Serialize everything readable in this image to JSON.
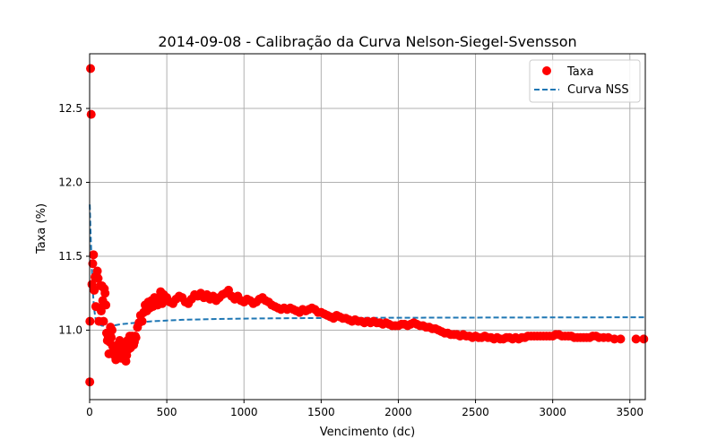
{
  "chart_data": {
    "type": "scatter",
    "title": "2014-09-08 - Calibração da Curva Nelson-Siegel-Svensson",
    "xlabel": "Vencimento (dc)",
    "ylabel": "Taxa (%)",
    "xlim": [
      0,
      3600
    ],
    "ylim": [
      10.53,
      12.87
    ],
    "xticks": [
      0,
      500,
      1000,
      1500,
      2000,
      2500,
      3000,
      3500
    ],
    "yticks": [
      11.0,
      11.5,
      12.0,
      12.5
    ],
    "xtick_labels": [
      "0",
      "500",
      "1000",
      "1500",
      "2000",
      "2500",
      "3000",
      "3500"
    ],
    "ytick_labels": [
      "11.0",
      "11.5",
      "12.0",
      "12.5"
    ],
    "grid": true,
    "legend_position": "top-right",
    "series": [
      {
        "name": "Taxa",
        "kind": "scatter",
        "color": "#ff0000",
        "points": [
          [
            1,
            10.65
          ],
          [
            2,
            11.06
          ],
          [
            6,
            12.77
          ],
          [
            10,
            12.46
          ],
          [
            15,
            11.31
          ],
          [
            20,
            11.45
          ],
          [
            25,
            11.51
          ],
          [
            30,
            11.27
          ],
          [
            35,
            11.36
          ],
          [
            40,
            11.16
          ],
          [
            45,
            11.37
          ],
          [
            50,
            11.4
          ],
          [
            55,
            11.35
          ],
          [
            60,
            11.06
          ],
          [
            65,
            11.15
          ],
          [
            70,
            11.3
          ],
          [
            75,
            11.13
          ],
          [
            80,
            11.3
          ],
          [
            85,
            11.2
          ],
          [
            90,
            11.06
          ],
          [
            95,
            11.28
          ],
          [
            100,
            11.25
          ],
          [
            105,
            11.17
          ],
          [
            110,
            10.98
          ],
          [
            115,
            10.93
          ],
          [
            120,
            10.96
          ],
          [
            125,
            10.84
          ],
          [
            130,
            10.92
          ],
          [
            135,
            11.02
          ],
          [
            140,
            10.95
          ],
          [
            145,
            11.0
          ],
          [
            150,
            10.89
          ],
          [
            155,
            10.85
          ],
          [
            160,
            10.83
          ],
          [
            165,
            10.88
          ],
          [
            170,
            10.8
          ],
          [
            175,
            10.86
          ],
          [
            180,
            10.9
          ],
          [
            185,
            10.82
          ],
          [
            190,
            10.88
          ],
          [
            195,
            10.93
          ],
          [
            200,
            10.82
          ],
          [
            205,
            10.81
          ],
          [
            210,
            10.86
          ],
          [
            215,
            10.9
          ],
          [
            220,
            10.83
          ],
          [
            225,
            10.88
          ],
          [
            230,
            10.84
          ],
          [
            235,
            10.79
          ],
          [
            240,
            10.83
          ],
          [
            245,
            10.93
          ],
          [
            250,
            10.87
          ],
          [
            255,
            10.92
          ],
          [
            260,
            10.96
          ],
          [
            265,
            10.88
          ],
          [
            270,
            10.92
          ],
          [
            275,
            10.96
          ],
          [
            280,
            10.95
          ],
          [
            285,
            10.9
          ],
          [
            290,
            10.92
          ],
          [
            295,
            10.96
          ],
          [
            300,
            10.95
          ],
          [
            310,
            11.02
          ],
          [
            320,
            11.05
          ],
          [
            330,
            11.1
          ],
          [
            340,
            11.06
          ],
          [
            350,
            11.12
          ],
          [
            360,
            11.17
          ],
          [
            370,
            11.13
          ],
          [
            380,
            11.19
          ],
          [
            390,
            11.15
          ],
          [
            400,
            11.2
          ],
          [
            410,
            11.16
          ],
          [
            420,
            11.22
          ],
          [
            430,
            11.19
          ],
          [
            440,
            11.17
          ],
          [
            450,
            11.21
          ],
          [
            460,
            11.26
          ],
          [
            470,
            11.18
          ],
          [
            480,
            11.24
          ],
          [
            490,
            11.2
          ],
          [
            500,
            11.22
          ],
          [
            520,
            11.19
          ],
          [
            540,
            11.18
          ],
          [
            560,
            11.21
          ],
          [
            580,
            11.23
          ],
          [
            600,
            11.22
          ],
          [
            620,
            11.19
          ],
          [
            640,
            11.18
          ],
          [
            660,
            11.21
          ],
          [
            680,
            11.24
          ],
          [
            700,
            11.23
          ],
          [
            720,
            11.25
          ],
          [
            740,
            11.22
          ],
          [
            760,
            11.24
          ],
          [
            780,
            11.21
          ],
          [
            800,
            11.23
          ],
          [
            820,
            11.2
          ],
          [
            840,
            11.22
          ],
          [
            860,
            11.24
          ],
          [
            880,
            11.25
          ],
          [
            900,
            11.27
          ],
          [
            920,
            11.23
          ],
          [
            940,
            11.21
          ],
          [
            960,
            11.23
          ],
          [
            980,
            11.2
          ],
          [
            1000,
            11.19
          ],
          [
            1020,
            11.21
          ],
          [
            1040,
            11.2
          ],
          [
            1060,
            11.18
          ],
          [
            1080,
            11.19
          ],
          [
            1100,
            11.21
          ],
          [
            1120,
            11.22
          ],
          [
            1140,
            11.2
          ],
          [
            1160,
            11.19
          ],
          [
            1180,
            11.17
          ],
          [
            1200,
            11.16
          ],
          [
            1220,
            11.15
          ],
          [
            1240,
            11.14
          ],
          [
            1260,
            11.15
          ],
          [
            1280,
            11.14
          ],
          [
            1300,
            11.15
          ],
          [
            1320,
            11.14
          ],
          [
            1340,
            11.13
          ],
          [
            1360,
            11.12
          ],
          [
            1380,
            11.14
          ],
          [
            1400,
            11.13
          ],
          [
            1420,
            11.14
          ],
          [
            1440,
            11.15
          ],
          [
            1460,
            11.14
          ],
          [
            1480,
            11.12
          ],
          [
            1500,
            11.12
          ],
          [
            1520,
            11.11
          ],
          [
            1540,
            11.1
          ],
          [
            1560,
            11.09
          ],
          [
            1580,
            11.08
          ],
          [
            1600,
            11.1
          ],
          [
            1620,
            11.09
          ],
          [
            1640,
            11.08
          ],
          [
            1660,
            11.08
          ],
          [
            1680,
            11.07
          ],
          [
            1700,
            11.06
          ],
          [
            1720,
            11.07
          ],
          [
            1740,
            11.06
          ],
          [
            1760,
            11.06
          ],
          [
            1780,
            11.05
          ],
          [
            1800,
            11.06
          ],
          [
            1820,
            11.05
          ],
          [
            1840,
            11.06
          ],
          [
            1860,
            11.05
          ],
          [
            1880,
            11.05
          ],
          [
            1900,
            11.04
          ],
          [
            1920,
            11.05
          ],
          [
            1940,
            11.04
          ],
          [
            1960,
            11.03
          ],
          [
            1980,
            11.03
          ],
          [
            2000,
            11.03
          ],
          [
            2020,
            11.04
          ],
          [
            2040,
            11.04
          ],
          [
            2060,
            11.03
          ],
          [
            2080,
            11.04
          ],
          [
            2100,
            11.05
          ],
          [
            2120,
            11.04
          ],
          [
            2140,
            11.03
          ],
          [
            2160,
            11.03
          ],
          [
            2180,
            11.02
          ],
          [
            2200,
            11.02
          ],
          [
            2220,
            11.01
          ],
          [
            2240,
            11.01
          ],
          [
            2260,
            11.0
          ],
          [
            2280,
            10.99
          ],
          [
            2300,
            10.98
          ],
          [
            2320,
            10.98
          ],
          [
            2340,
            10.97
          ],
          [
            2360,
            10.97
          ],
          [
            2380,
            10.97
          ],
          [
            2400,
            10.96
          ],
          [
            2420,
            10.97
          ],
          [
            2440,
            10.96
          ],
          [
            2460,
            10.96
          ],
          [
            2480,
            10.95
          ],
          [
            2500,
            10.96
          ],
          [
            2520,
            10.95
          ],
          [
            2540,
            10.95
          ],
          [
            2560,
            10.96
          ],
          [
            2580,
            10.95
          ],
          [
            2600,
            10.95
          ],
          [
            2620,
            10.94
          ],
          [
            2640,
            10.95
          ],
          [
            2660,
            10.94
          ],
          [
            2680,
            10.94
          ],
          [
            2700,
            10.95
          ],
          [
            2720,
            10.95
          ],
          [
            2740,
            10.94
          ],
          [
            2760,
            10.95
          ],
          [
            2780,
            10.94
          ],
          [
            2800,
            10.95
          ],
          [
            2820,
            10.95
          ],
          [
            2840,
            10.96
          ],
          [
            2860,
            10.96
          ],
          [
            2880,
            10.96
          ],
          [
            2900,
            10.96
          ],
          [
            2920,
            10.96
          ],
          [
            2940,
            10.96
          ],
          [
            2960,
            10.96
          ],
          [
            2980,
            10.96
          ],
          [
            3000,
            10.96
          ],
          [
            3020,
            10.97
          ],
          [
            3040,
            10.97
          ],
          [
            3060,
            10.96
          ],
          [
            3080,
            10.96
          ],
          [
            3100,
            10.96
          ],
          [
            3120,
            10.96
          ],
          [
            3140,
            10.95
          ],
          [
            3160,
            10.95
          ],
          [
            3180,
            10.95
          ],
          [
            3200,
            10.95
          ],
          [
            3220,
            10.95
          ],
          [
            3240,
            10.95
          ],
          [
            3260,
            10.96
          ],
          [
            3280,
            10.96
          ],
          [
            3300,
            10.95
          ],
          [
            3330,
            10.95
          ],
          [
            3360,
            10.95
          ],
          [
            3400,
            10.94
          ],
          [
            3440,
            10.94
          ],
          [
            3540,
            10.94
          ],
          [
            3590,
            10.94
          ]
        ]
      },
      {
        "name": "Curva NSS",
        "kind": "line",
        "style": "dashed",
        "color": "#1f77b4",
        "points": [
          [
            1,
            11.85
          ],
          [
            5,
            11.7
          ],
          [
            10,
            11.55
          ],
          [
            15,
            11.4
          ],
          [
            20,
            11.28
          ],
          [
            25,
            11.2
          ],
          [
            30,
            11.14
          ],
          [
            35,
            11.1
          ],
          [
            40,
            11.07
          ],
          [
            50,
            11.05
          ],
          [
            60,
            11.04
          ],
          [
            80,
            11.03
          ],
          [
            100,
            11.03
          ],
          [
            150,
            11.03
          ],
          [
            200,
            11.04
          ],
          [
            300,
            11.05
          ],
          [
            400,
            11.06
          ],
          [
            500,
            11.065
          ],
          [
            600,
            11.07
          ],
          [
            800,
            11.075
          ],
          [
            1000,
            11.078
          ],
          [
            1200,
            11.08
          ],
          [
            1500,
            11.082
          ],
          [
            2000,
            11.084
          ],
          [
            2500,
            11.085
          ],
          [
            3000,
            11.086
          ],
          [
            3600,
            11.087
          ]
        ]
      }
    ]
  }
}
